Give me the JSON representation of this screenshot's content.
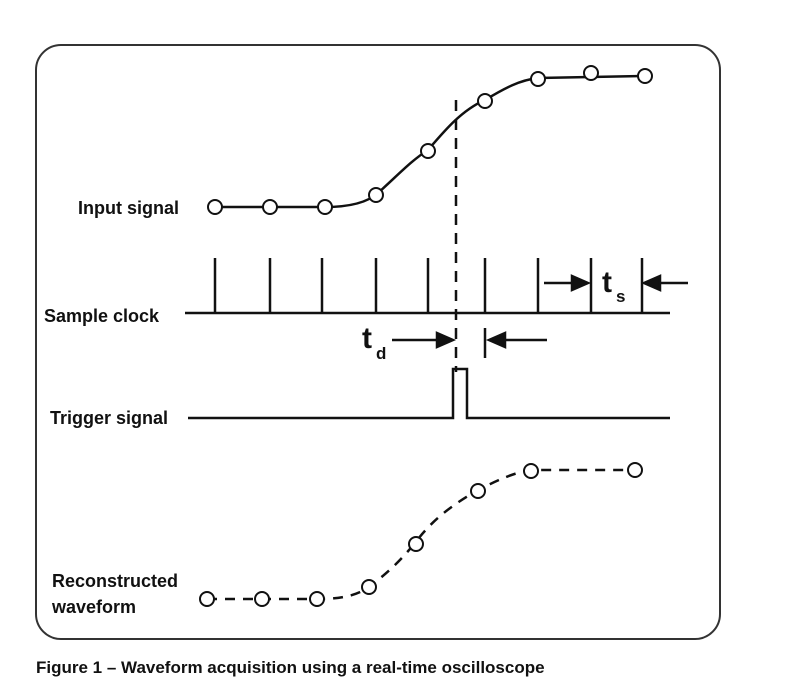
{
  "labels": {
    "input_signal": "Input signal",
    "sample_clock": "Sample clock",
    "trigger_signal": "Trigger signal",
    "reconstructed_line1": "Reconstructed",
    "reconstructed_line2": "waveform",
    "td_main": "t",
    "td_sub": "d",
    "ts_main": "t",
    "ts_sub": "s"
  },
  "caption": "Figure 1 – Waveform acquisition using a real-time oscilloscope",
  "colors": {
    "stroke": "#111111",
    "frame": "#333333"
  }
}
